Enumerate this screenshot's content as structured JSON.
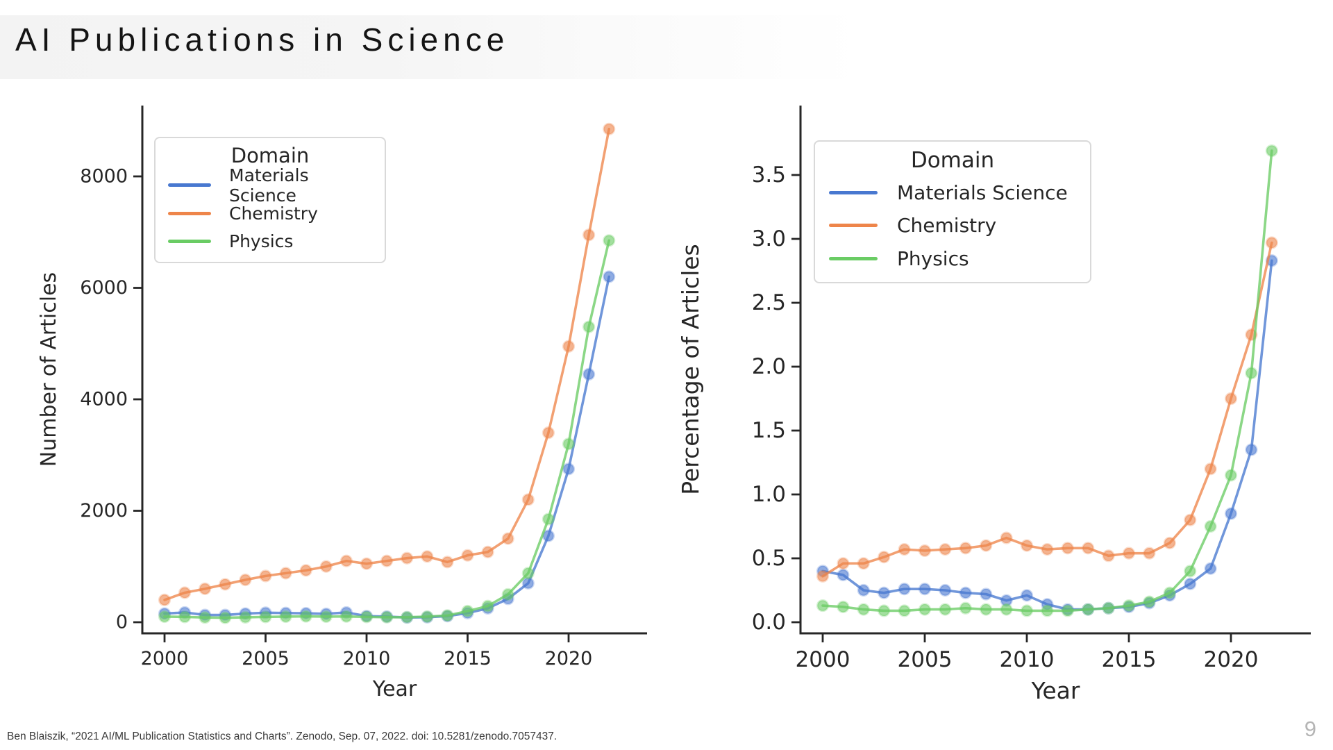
{
  "slide": {
    "title": "AI Publications in Science",
    "page_number": "9",
    "citation": "Ben Blaiszik, “2021 AI/ML Publication Statistics and Charts”. Zenodo, Sep. 07, 2022. doi: 10.5281/zenodo.7057437."
  },
  "palette": {
    "materials_science": "#4878D0",
    "chemistry": "#EE854A",
    "physics": "#6ACC64",
    "axis": "#262626",
    "legend_border": "#d9d9d9"
  },
  "chart_data": [
    {
      "type": "line",
      "title": "",
      "xlabel": "Year",
      "ylabel": "Number of Articles",
      "x": [
        2000,
        2001,
        2002,
        2003,
        2004,
        2005,
        2006,
        2007,
        2008,
        2009,
        2010,
        2011,
        2012,
        2013,
        2014,
        2015,
        2016,
        2017,
        2018,
        2019,
        2020,
        2021,
        2022
      ],
      "xticks": [
        2000,
        2005,
        2010,
        2015,
        2020
      ],
      "yticks": [
        0,
        2000,
        4000,
        6000,
        8000
      ],
      "ylim": [
        0,
        9320
      ],
      "grid": false,
      "legend": {
        "title": "Domain",
        "position": "upper left"
      },
      "series": [
        {
          "name": "Materials Science",
          "color": "#4878D0",
          "values": [
            155,
            175,
            130,
            130,
            155,
            170,
            165,
            160,
            150,
            175,
            110,
            100,
            85,
            90,
            110,
            165,
            250,
            420,
            700,
            1550,
            2750,
            4450,
            6200
          ]
        },
        {
          "name": "Chemistry",
          "color": "#EE854A",
          "values": [
            400,
            530,
            600,
            680,
            760,
            830,
            880,
            930,
            1000,
            1100,
            1050,
            1100,
            1150,
            1180,
            1080,
            1200,
            1260,
            1500,
            2200,
            3400,
            4950,
            6950,
            8850
          ]
        },
        {
          "name": "Physics",
          "color": "#6ACC64",
          "values": [
            100,
            95,
            85,
            80,
            88,
            95,
            100,
            105,
            100,
            103,
            95,
            90,
            90,
            100,
            120,
            200,
            290,
            500,
            880,
            1850,
            3200,
            5300,
            6850
          ]
        }
      ]
    },
    {
      "type": "line",
      "title": "",
      "xlabel": "Year",
      "ylabel": "Percentage of Articles",
      "x": [
        2000,
        2001,
        2002,
        2003,
        2004,
        2005,
        2006,
        2007,
        2008,
        2009,
        2010,
        2011,
        2012,
        2013,
        2014,
        2015,
        2016,
        2017,
        2018,
        2019,
        2020,
        2021,
        2022
      ],
      "xticks": [
        2000,
        2005,
        2010,
        2015,
        2020
      ],
      "yticks": [
        0.0,
        0.5,
        1.0,
        1.5,
        2.0,
        2.5,
        3.0,
        3.5
      ],
      "ylim": [
        0,
        4.07
      ],
      "grid": false,
      "legend": {
        "title": "Domain",
        "position": "upper left"
      },
      "series": [
        {
          "name": "Materials Science",
          "color": "#4878D0",
          "values": [
            0.4,
            0.37,
            0.25,
            0.23,
            0.26,
            0.26,
            0.25,
            0.23,
            0.22,
            0.17,
            0.21,
            0.14,
            0.1,
            0.1,
            0.11,
            0.12,
            0.15,
            0.21,
            0.3,
            0.42,
            0.85,
            1.35,
            2.83
          ]
        },
        {
          "name": "Chemistry",
          "color": "#EE854A",
          "values": [
            0.36,
            0.46,
            0.46,
            0.51,
            0.57,
            0.56,
            0.57,
            0.58,
            0.6,
            0.66,
            0.6,
            0.57,
            0.58,
            0.58,
            0.52,
            0.54,
            0.54,
            0.62,
            0.8,
            1.2,
            1.75,
            2.25,
            2.97
          ]
        },
        {
          "name": "Physics",
          "color": "#6ACC64",
          "values": [
            0.13,
            0.12,
            0.1,
            0.09,
            0.09,
            0.1,
            0.1,
            0.11,
            0.1,
            0.1,
            0.09,
            0.09,
            0.09,
            0.1,
            0.11,
            0.13,
            0.16,
            0.23,
            0.4,
            0.75,
            1.15,
            1.95,
            3.69
          ]
        }
      ]
    }
  ]
}
